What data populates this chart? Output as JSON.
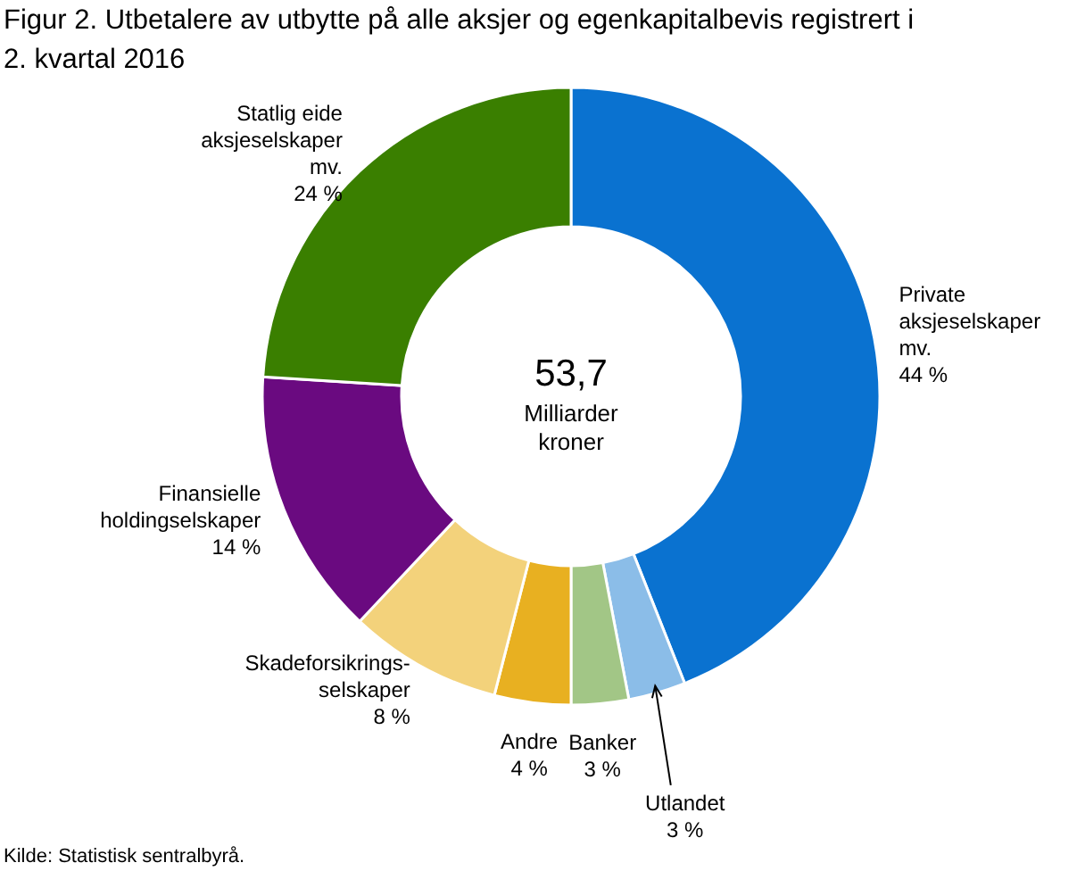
{
  "chart_data": {
    "type": "donut",
    "title": "Figur 2. Utbetalere av utbytte på alle aksjer og egenkapitalbevis registrert i 2. kvartal 2016",
    "categories": [
      "Private aksjeselskaper mv.",
      "Utlandet",
      "Banker",
      "Andre",
      "Skadeforsikrings-selskaper",
      "Finansielle holdingselskaper",
      "Statlig eide aksjeselskaper mv."
    ],
    "values": [
      44,
      3,
      3,
      4,
      8,
      14,
      24
    ],
    "colors": [
      "#0a72d0",
      "#8bbde8",
      "#a2c686",
      "#e8b021",
      "#f3d27b",
      "#6a0a80",
      "#3a7f00"
    ],
    "value_labels": [
      "44 %",
      "3 %",
      "3 %",
      "4 %",
      "8 %",
      "14 %",
      "24 %"
    ],
    "annotations": [
      "53,7",
      "Milliarder kroner",
      "Kilde: Statistisk sentralbyrå."
    ]
  }
}
